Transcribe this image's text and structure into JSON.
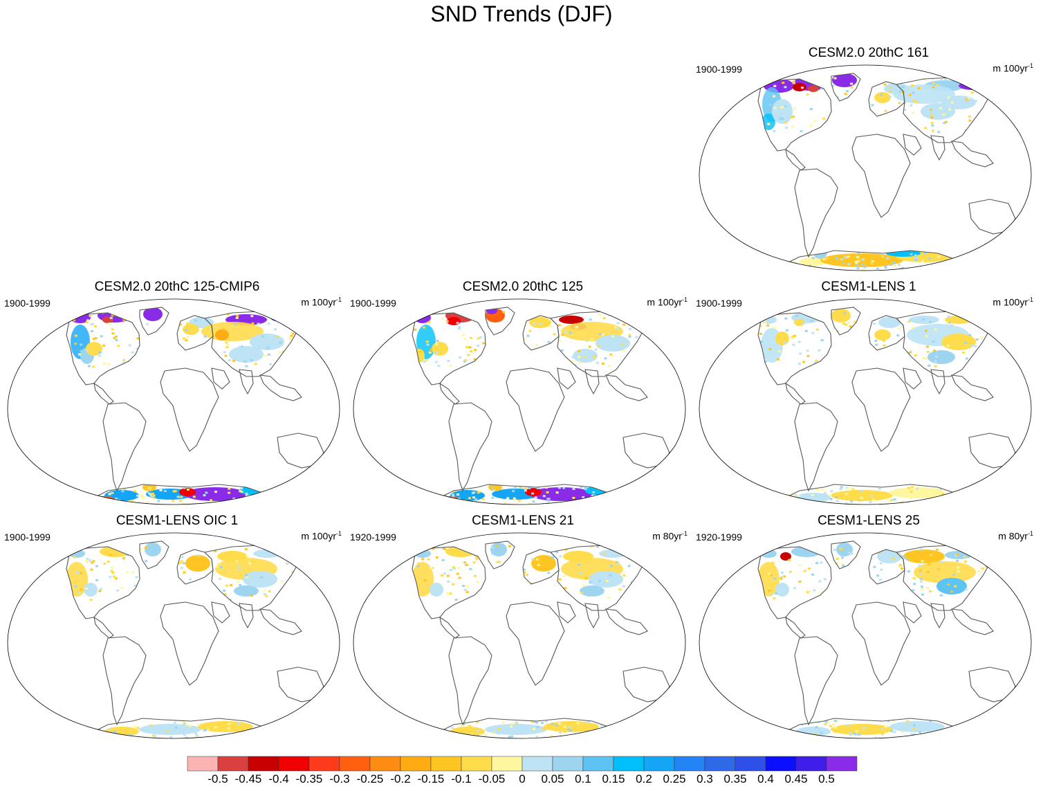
{
  "title": "SND Trends (DJF)",
  "panels": [
    {
      "title": "CESM2.0 20thC 161",
      "period": "1900-1999",
      "units_base": "m 100yr",
      "units_exp": "-1",
      "style": "cmip6"
    },
    {
      "title": "CESM2.0 20thC 125-CMIP6",
      "period": "1900-1999",
      "units_base": "m 100yr",
      "units_exp": "-1",
      "style": "cmip6strong"
    },
    {
      "title": "CESM2.0 20thC 125",
      "period": "1900-1999",
      "units_base": "m 100yr",
      "units_exp": "-1",
      "style": "cmip6mixed"
    },
    {
      "title": "CESM1-LENS 1",
      "period": "1900-1999",
      "units_base": "m 100yr",
      "units_exp": "-1",
      "style": "lens"
    },
    {
      "title": "CESM1-LENS OIC 1",
      "period": "1900-1999",
      "units_base": "m 100yr",
      "units_exp": "-1",
      "style": "lensyellow"
    },
    {
      "title": "CESM1-LENS 21",
      "period": "1920-1999",
      "units_base": "m 80yr",
      "units_exp": "-1",
      "style": "lensyellow"
    },
    {
      "title": "CESM1-LENS 25",
      "period": "1920-1999",
      "units_base": "m 80yr",
      "units_exp": "-1",
      "style": "lensmixed"
    }
  ],
  "colorbar": {
    "colors": [
      "#ffb3b3",
      "#d94040",
      "#c80000",
      "#f00000",
      "#ff3b1e",
      "#ff6010",
      "#ff8c12",
      "#ffab12",
      "#ffc623",
      "#ffdc4b",
      "#fff7a0",
      "#bde3f5",
      "#9dd5f0",
      "#5cc3f2",
      "#00c0fb",
      "#14a5f7",
      "#2484f5",
      "#2e6ae8",
      "#2e4fe8",
      "#0a10ff",
      "#3e1ee8",
      "#8a2be8"
    ],
    "labels": [
      "-0.5",
      "-0.45",
      "-0.4",
      "-0.35",
      "-0.3",
      "-0.25",
      "-0.2",
      "-0.15",
      "-0.1",
      "-0.05",
      "0",
      "0.05",
      "0.1",
      "0.15",
      "0.2",
      "0.25",
      "0.3",
      "0.35",
      "0.4",
      "0.45",
      "0.5"
    ]
  }
}
